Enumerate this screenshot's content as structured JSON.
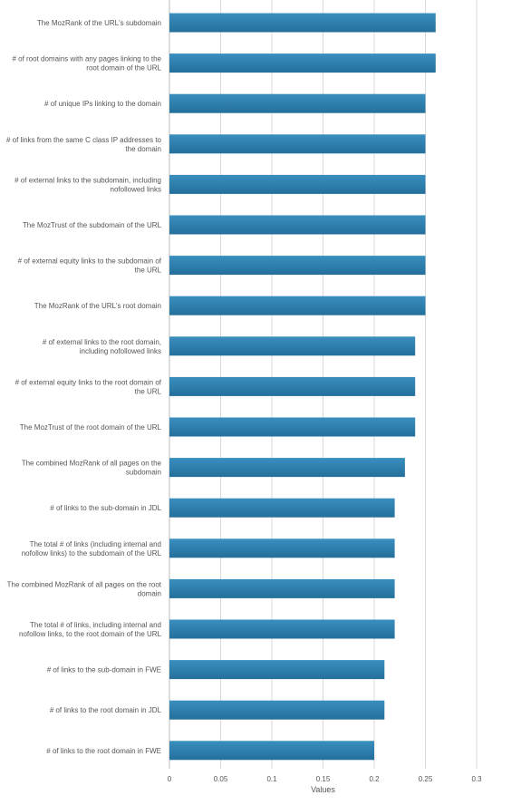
{
  "chart_data": {
    "type": "bar",
    "orientation": "horizontal",
    "categories": [
      "The MozRank of the URL's subdomain",
      "# of root domains with any pages linking to the root domain of the URL",
      "# of unique IPs linking to the domain",
      "# of links from the same C class IP addresses to the domain",
      "# of external links to the subdomain, including nofollowed links",
      "The MozTrust of the subdomain of the URL",
      "# of external equity links to the subdomain of the URL",
      "The MozRank of the URL's root domain",
      "# of external links to the root domain, including nofollowed links",
      "# of external equity links to the root domain of the URL",
      "The MozTrust of the root domain of the URL",
      "The combined MozRank of all pages on the subdomain",
      "# of links to the sub-domain in JDL",
      "The total # of links (including internal and nofollow links) to the subdomain of the URL",
      "The combined MozRank of all pages on the root domain",
      "The total # of links, including internal and nofollow links, to the root domain of the URL",
      "# of links to the sub-domain in FWE",
      "# of links to the root domain in JDL",
      "# of links to the root domain in FWE"
    ],
    "values": [
      0.26,
      0.26,
      0.25,
      0.25,
      0.25,
      0.25,
      0.25,
      0.25,
      0.24,
      0.24,
      0.24,
      0.23,
      0.22,
      0.22,
      0.22,
      0.22,
      0.21,
      0.21,
      0.2
    ],
    "xlabel": "Values",
    "xlim": [
      0,
      0.3
    ],
    "ticks": [
      "0",
      "0.05",
      "0.1",
      "0.15",
      "0.2",
      "0.25",
      "0.3"
    ],
    "grid": true,
    "bar_color": "#246f9b",
    "bar_color_light": "#3a8fbf"
  }
}
